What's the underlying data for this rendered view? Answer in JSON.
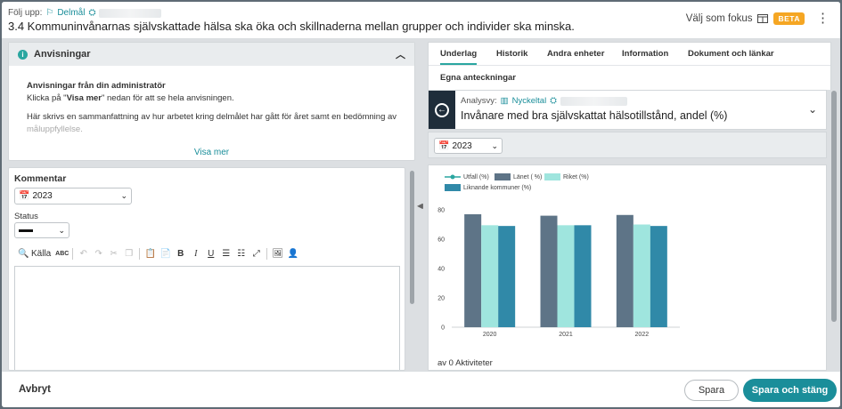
{
  "header": {
    "follow_label": "Följ upp:",
    "crumb_type": "Delmål",
    "title": "3.4 Kommuninvånarnas självskattade hälsa ska öka och skillnaderna mellan grupper och individer ska minska.",
    "focus_label": "Välj som fokus",
    "beta_label": "BETA"
  },
  "instructions": {
    "title": "Anvisningar",
    "heading": "Anvisningar från din administratör",
    "line1_pre": "Klicka på \"",
    "line1_bold": "Visa mer",
    "line1_post": "\" nedan för att se hela anvisningen.",
    "line2": "Här skrivs en sammanfattning av hur arbetet kring delmålet har gått för året samt en bedömning av",
    "line3": "måluppfyllelse.",
    "show_more": "Visa mer"
  },
  "comment": {
    "label": "Kommentar",
    "year": "2023",
    "status_label": "Status",
    "source_label": "Källa"
  },
  "tabs": [
    "Underlag",
    "Historik",
    "Andra enheter",
    "Information",
    "Dokument och länkar",
    "Egna anteckningar"
  ],
  "analysis": {
    "label": "Analysvy:",
    "type": "Nyckeltal",
    "title": "Invånare med bra självskattat hälsotillstånd, andel (%)",
    "year": "2023"
  },
  "chart_data": {
    "type": "bar",
    "categories": [
      "2020",
      "2021",
      "2022"
    ],
    "series": [
      {
        "name": "Utfall (%)",
        "values": [
          null,
          null,
          null
        ],
        "color": "#2aa6a0"
      },
      {
        "name": "Länet ( %)",
        "values": [
          77,
          76,
          76.5
        ],
        "color": "#5e7487"
      },
      {
        "name": "Riket (%)",
        "values": [
          69.5,
          69.5,
          70
        ],
        "color": "#9fe5de"
      },
      {
        "name": "Liknande kommuner (%)",
        "values": [
          69,
          69.5,
          69
        ],
        "color": "#3089a8"
      }
    ],
    "yticks": [
      "0",
      "20",
      "40",
      "60",
      "80"
    ],
    "ylim": [
      0,
      80
    ],
    "legend_position": "top-left",
    "grid": false
  },
  "activities": "av 0 Aktiviteter",
  "footer": {
    "cancel": "Avbryt",
    "save": "Spara",
    "save_close": "Spara och stäng"
  }
}
